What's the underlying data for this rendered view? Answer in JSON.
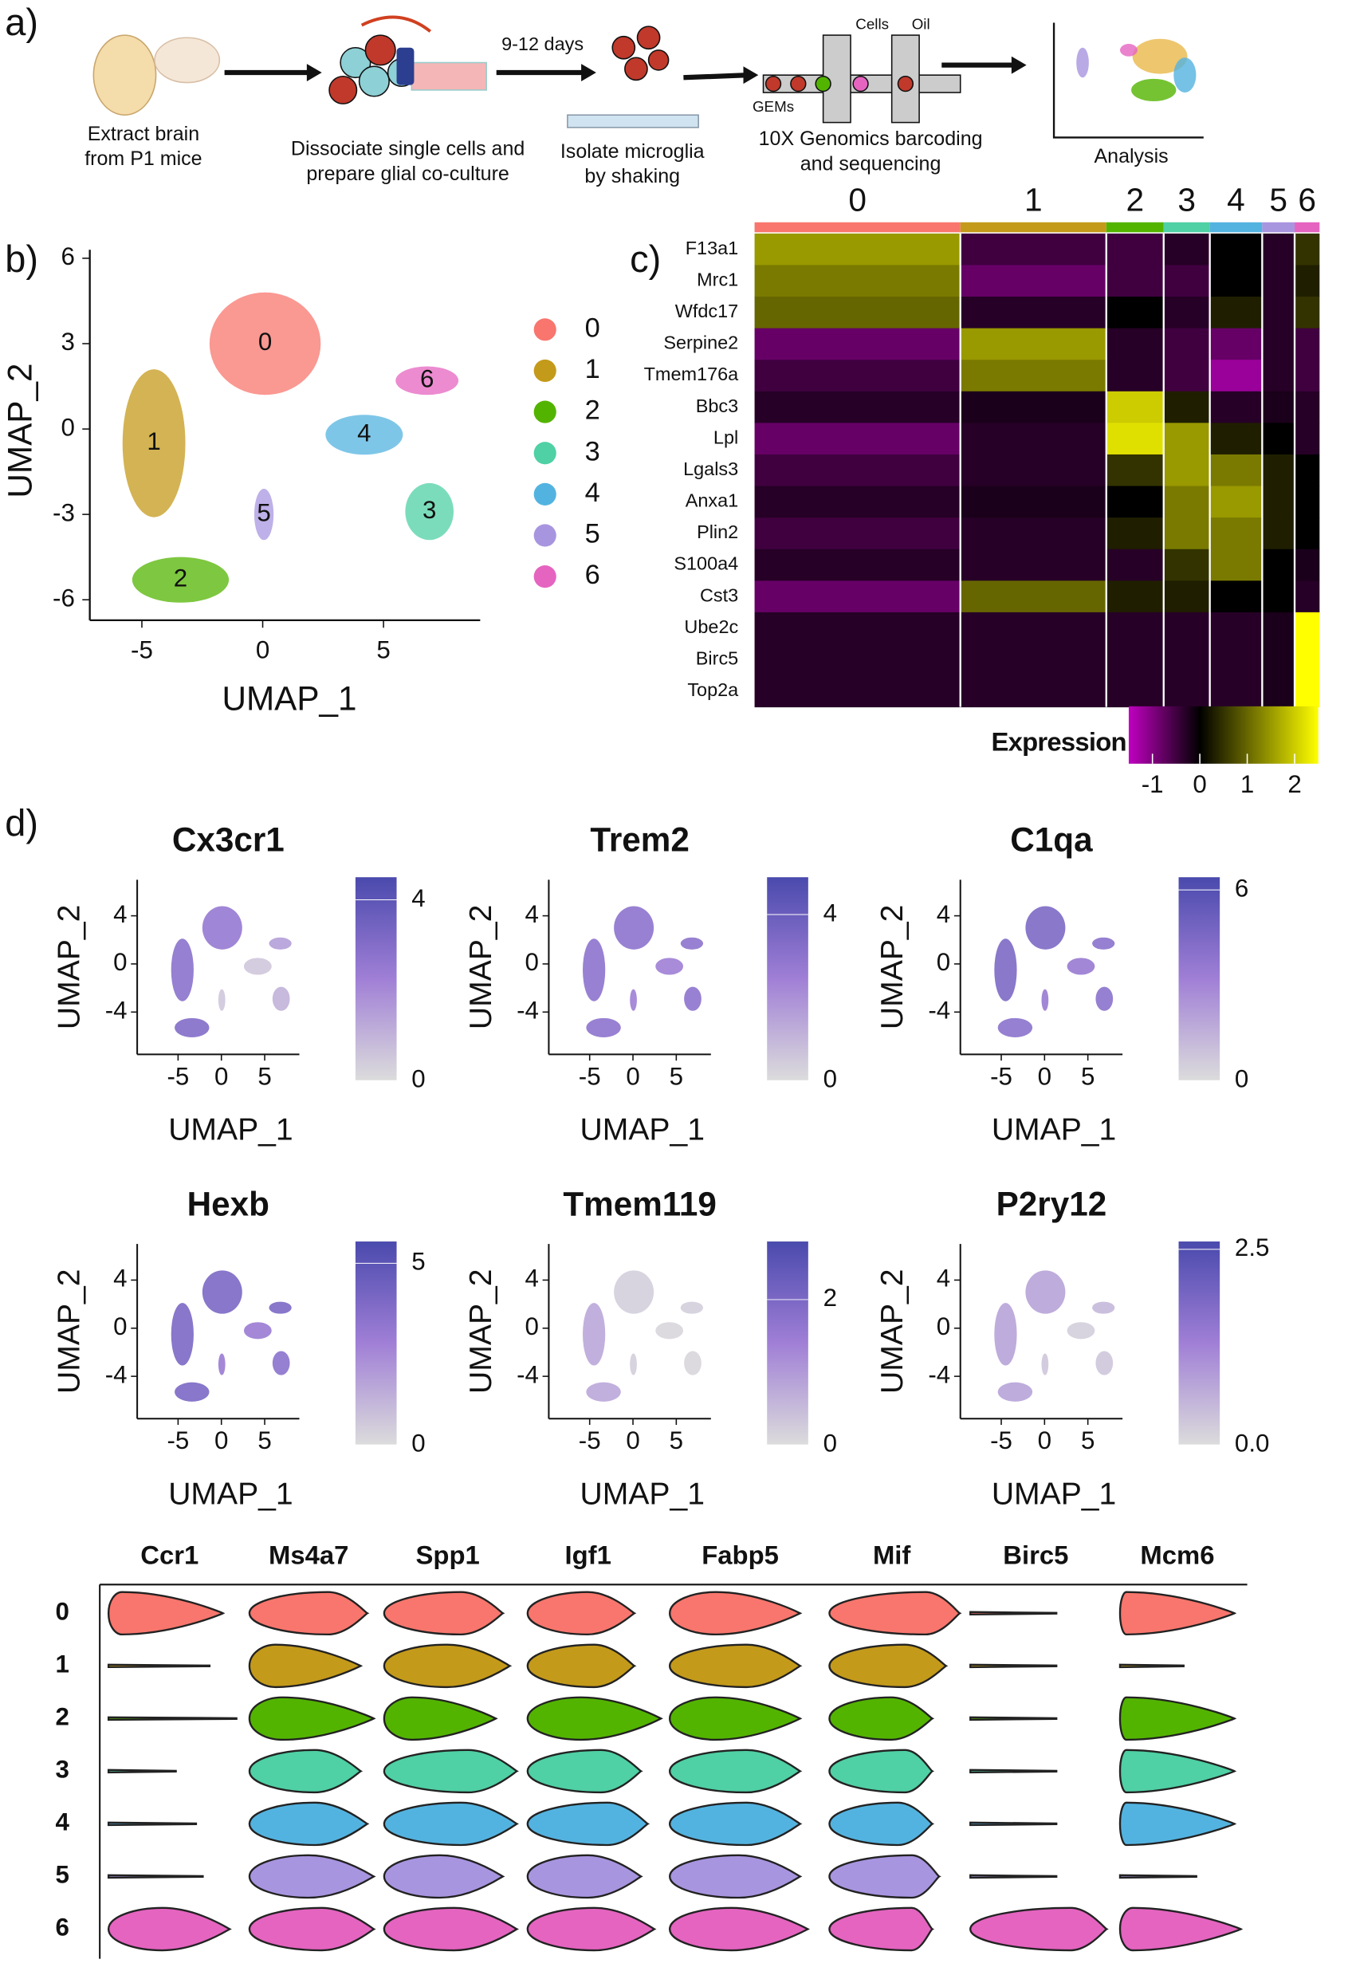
{
  "panel_labels": [
    "a)",
    "b)",
    "c)",
    "d)"
  ],
  "workflow": {
    "steps": [
      [
        "Extract brain",
        "from P1 mice"
      ],
      [
        "Dissociate single cells and",
        "prepare glial co-culture"
      ],
      [
        "Isolate microglia",
        "by shaking"
      ],
      [
        "10X Genomics barcoding",
        "and sequencing"
      ],
      [
        "Analysis"
      ]
    ],
    "duration": "9-12 days",
    "chip_labels": [
      "Cells",
      "Oil",
      "GEMs"
    ]
  },
  "chart_data": [
    {
      "type": "scatter",
      "xlabel": "UMAP_1",
      "ylabel": "UMAP_2",
      "xlim": [
        -7,
        9
      ],
      "ylim": [
        -6.5,
        6.3
      ],
      "xticks": [
        -5,
        0,
        5
      ],
      "yticks": [
        6,
        3,
        0,
        -3,
        -6
      ],
      "categories": [
        "0",
        "1",
        "2",
        "3",
        "4",
        "5",
        "6"
      ],
      "colors": [
        "#f8766d",
        "#c49a1a",
        "#53b400",
        "#4fd0a5",
        "#53b3e0",
        "#a895e0",
        "#e564c0"
      ],
      "x": [
        0.1,
        -4.5,
        -3.4,
        6.9,
        4.2,
        0.05,
        6.8
      ],
      "values": [
        3.0,
        -0.5,
        -5.3,
        -2.9,
        -0.2,
        -3.0,
        1.7
      ],
      "x_spread": [
        2.3,
        1.3,
        2.0,
        1.0,
        1.6,
        0.4,
        1.3
      ],
      "y_spread": [
        1.8,
        2.6,
        0.8,
        1.0,
        0.7,
        0.9,
        0.5
      ]
    },
    {
      "type": "heatmap",
      "categories": [
        "0",
        "1",
        "2",
        "3",
        "4",
        "5",
        "6"
      ],
      "colors": [
        "#f8766d",
        "#c49a1a",
        "#53b400",
        "#4fd0a5",
        "#53b3e0",
        "#a895e0",
        "#e564c0"
      ],
      "genes": [
        "F13a1",
        "Mrc1",
        "Wfdc17",
        "Serpine2",
        "Tmem176a",
        "Bbc3",
        "Lpl",
        "Lgals3",
        "Anxa1",
        "Plin2",
        "S100a4",
        "Cst3",
        "Ube2c",
        "Birc5",
        "Top2a"
      ],
      "values": [
        [
          1.5,
          -0.5,
          -0.5,
          -0.3,
          0,
          -0.3,
          0.5
        ],
        [
          1.2,
          -0.8,
          -0.5,
          -0.5,
          0,
          -0.3,
          0.3
        ],
        [
          1.0,
          -0.3,
          0,
          -0.3,
          0.3,
          -0.3,
          0.5
        ],
        [
          -0.8,
          1.5,
          -0.3,
          -0.5,
          -0.8,
          -0.3,
          -0.5
        ],
        [
          -0.5,
          1.2,
          -0.3,
          -0.5,
          -1.2,
          -0.3,
          -0.5
        ],
        [
          -0.3,
          -0.2,
          2.0,
          0.3,
          -0.3,
          -0.2,
          -0.3
        ],
        [
          -0.8,
          -0.3,
          2.2,
          1.5,
          0.3,
          0,
          -0.3
        ],
        [
          -0.5,
          -0.3,
          0.5,
          1.5,
          1.2,
          0.3,
          0
        ],
        [
          -0.3,
          -0.2,
          0,
          1.2,
          1.5,
          0.3,
          0
        ],
        [
          -0.5,
          -0.3,
          0.3,
          1.2,
          1.2,
          0.3,
          0
        ],
        [
          -0.3,
          -0.3,
          -0.3,
          0.5,
          1.2,
          0,
          -0.2
        ],
        [
          -0.8,
          1.0,
          0.3,
          0.3,
          0,
          0,
          -0.3
        ],
        [
          -0.3,
          -0.3,
          -0.3,
          -0.3,
          -0.3,
          -0.2,
          2.5
        ],
        [
          -0.3,
          -0.3,
          -0.3,
          -0.3,
          -0.3,
          -0.2,
          2.5
        ],
        [
          -0.3,
          -0.3,
          -0.3,
          -0.3,
          -0.3,
          -0.2,
          2.5
        ]
      ],
      "colorbar_label": "Expression",
      "clim": [
        -1.5,
        2.5
      ],
      "colormap_mid": 0,
      "cticks": [
        -1,
        0,
        1,
        2
      ],
      "colormap": [
        "#c000c0",
        "#000000",
        "#ffff00"
      ]
    },
    {
      "type": "feature",
      "title": "Cx3cr1",
      "xlabel": "UMAP_1",
      "ylabel": "UMAP_2",
      "xlim": [
        -9,
        9
      ],
      "ylim": [
        -7,
        7
      ],
      "xticks": [
        -5,
        0,
        5
      ],
      "yticks": [
        4,
        0,
        -4
      ],
      "clim": [
        0,
        4.5
      ],
      "cticks": [
        0,
        4
      ],
      "colormap": [
        "#dcdcdc",
        "#a07fd6",
        "#4a4aad"
      ],
      "values": [
        2.5,
        2.8,
        3,
        1,
        0.5,
        0.5,
        1.5
      ]
    },
    {
      "type": "feature",
      "title": "Trem2",
      "xlabel": "UMAP_1",
      "ylabel": "UMAP_2",
      "xlim": [
        -9,
        9
      ],
      "ylim": [
        -7,
        7
      ],
      "xticks": [
        -5,
        0,
        5
      ],
      "yticks": [
        4,
        0,
        -4
      ],
      "clim": [
        0,
        4.9
      ],
      "cticks": [
        0,
        4
      ],
      "colormap": [
        "#dcdcdc",
        "#a07fd6",
        "#4a4aad"
      ],
      "values": [
        3,
        3,
        3,
        3,
        2.5,
        2.5,
        3
      ]
    },
    {
      "type": "feature",
      "title": "C1qa",
      "xlabel": "UMAP_1",
      "ylabel": "UMAP_2",
      "xlim": [
        -9,
        9
      ],
      "ylim": [
        -7,
        7
      ],
      "xticks": [
        -5,
        0,
        5
      ],
      "yticks": [
        4,
        0,
        -4
      ],
      "clim": [
        0,
        6.4
      ],
      "cticks": [
        0,
        6
      ],
      "colormap": [
        "#dcdcdc",
        "#a07fd6",
        "#4a4aad"
      ],
      "values": [
        4.5,
        4.5,
        4,
        4,
        3.5,
        3.5,
        4
      ]
    },
    {
      "type": "feature",
      "title": "Hexb",
      "xlabel": "UMAP_1",
      "ylabel": "UMAP_2",
      "xlim": [
        -9,
        9
      ],
      "ylim": [
        -7,
        7
      ],
      "xticks": [
        -5,
        0,
        5
      ],
      "yticks": [
        4,
        0,
        -4
      ],
      "clim": [
        0,
        5.6
      ],
      "cticks": [
        0,
        5
      ],
      "colormap": [
        "#dcdcdc",
        "#a07fd6",
        "#4a4aad"
      ],
      "values": [
        4,
        4,
        4,
        3.5,
        3,
        3,
        4
      ]
    },
    {
      "type": "feature",
      "title": "Tmem119",
      "xlabel": "UMAP_1",
      "ylabel": "UMAP_2",
      "xlim": [
        -9,
        9
      ],
      "ylim": [
        -7,
        7
      ],
      "xticks": [
        -5,
        0,
        5
      ],
      "yticks": [
        4,
        0,
        -4
      ],
      "clim": [
        0,
        2.8
      ],
      "cticks": [
        0,
        2
      ],
      "colormap": [
        "#dcdcdc",
        "#a07fd6",
        "#4a4aad"
      ],
      "values": [
        0.2,
        0.8,
        0.8,
        0.1,
        0.1,
        0.2,
        0.2
      ]
    },
    {
      "type": "feature",
      "title": "P2ry12",
      "xlabel": "UMAP_1",
      "ylabel": "UMAP_2",
      "xlim": [
        -9,
        9
      ],
      "ylim": [
        -7,
        7
      ],
      "xticks": [
        -5,
        0,
        5
      ],
      "yticks": [
        4,
        0,
        -4
      ],
      "clim": [
        0,
        2.6
      ],
      "cticks": [
        {
          "value": 0,
          "label": "0.0"
        },
        2.5
      ],
      "colormap": [
        "#dcdcdc",
        "#a07fd6",
        "#4a4aad"
      ],
      "values": [
        0.8,
        0.8,
        0.8,
        0.3,
        0.2,
        0.3,
        0.5
      ]
    },
    {
      "type": "violin",
      "genes": [
        "Ccr1",
        "Ms4a7",
        "Spp1",
        "Igf1",
        "Fabp5",
        "Mif",
        "Birc5",
        "Mcm6"
      ],
      "categories": [
        "0",
        "1",
        "2",
        "3",
        "4",
        "5",
        "6"
      ],
      "colors": [
        "#f8766d",
        "#c49a1a",
        "#53b400",
        "#4fd0a5",
        "#53b3e0",
        "#a895e0",
        "#e564c0"
      ],
      "values": [
        [
          [
            0.1,
            0.85
          ],
          [
            0,
            0.75
          ],
          [
            0,
            0.95
          ],
          [
            0,
            0.5
          ],
          [
            0,
            0.65
          ],
          [
            0,
            0.7
          ],
          [
            0.4,
            0.9
          ]
        ],
        [
          [
            0.6,
            0.9
          ],
          [
            0.2,
            0.85
          ],
          [
            0.25,
            0.95
          ],
          [
            0.5,
            0.85
          ],
          [
            0.5,
            0.9
          ],
          [
            0.45,
            0.95
          ],
          [
            0.55,
            0.95
          ]
        ],
        [
          [
            0.55,
            0.85
          ],
          [
            0.45,
            0.9
          ],
          [
            0.2,
            0.8
          ],
          [
            0.6,
            0.95
          ],
          [
            0.55,
            0.95
          ],
          [
            0.4,
            0.85
          ],
          [
            0.5,
            0.95
          ]
        ],
        [
          [
            0.45,
            0.8
          ],
          [
            0.5,
            0.8
          ],
          [
            0.4,
            1.0
          ],
          [
            0.55,
            0.85
          ],
          [
            0.6,
            0.9
          ],
          [
            0.45,
            0.85
          ],
          [
            0.5,
            0.95
          ]
        ],
        [
          [
            0.3,
            0.85
          ],
          [
            0.5,
            0.85
          ],
          [
            0.3,
            0.85
          ],
          [
            0.5,
            0.85
          ],
          [
            0.5,
            0.85
          ],
          [
            0.45,
            0.85
          ],
          [
            0.4,
            0.9
          ]
        ],
        [
          [
            0.7,
            0.95
          ],
          [
            0.55,
            0.85
          ],
          [
            0.45,
            0.75
          ],
          [
            0.55,
            0.75
          ],
          [
            0.5,
            0.75
          ],
          [
            0.6,
            0.8
          ],
          [
            0.6,
            0.75
          ]
        ],
        [
          [
            0,
            0.6
          ],
          [
            0,
            0.6
          ],
          [
            0,
            0.6
          ],
          [
            0,
            0.6
          ],
          [
            0,
            0.6
          ],
          [
            0,
            0.6
          ],
          [
            0.7,
            0.95
          ]
        ],
        [
          [
            0.05,
            0.9
          ],
          [
            0,
            0.5
          ],
          [
            0.05,
            0.9
          ],
          [
            0.05,
            0.9
          ],
          [
            0.05,
            0.9
          ],
          [
            0,
            0.6
          ],
          [
            0.1,
            0.95
          ]
        ]
      ]
    }
  ]
}
